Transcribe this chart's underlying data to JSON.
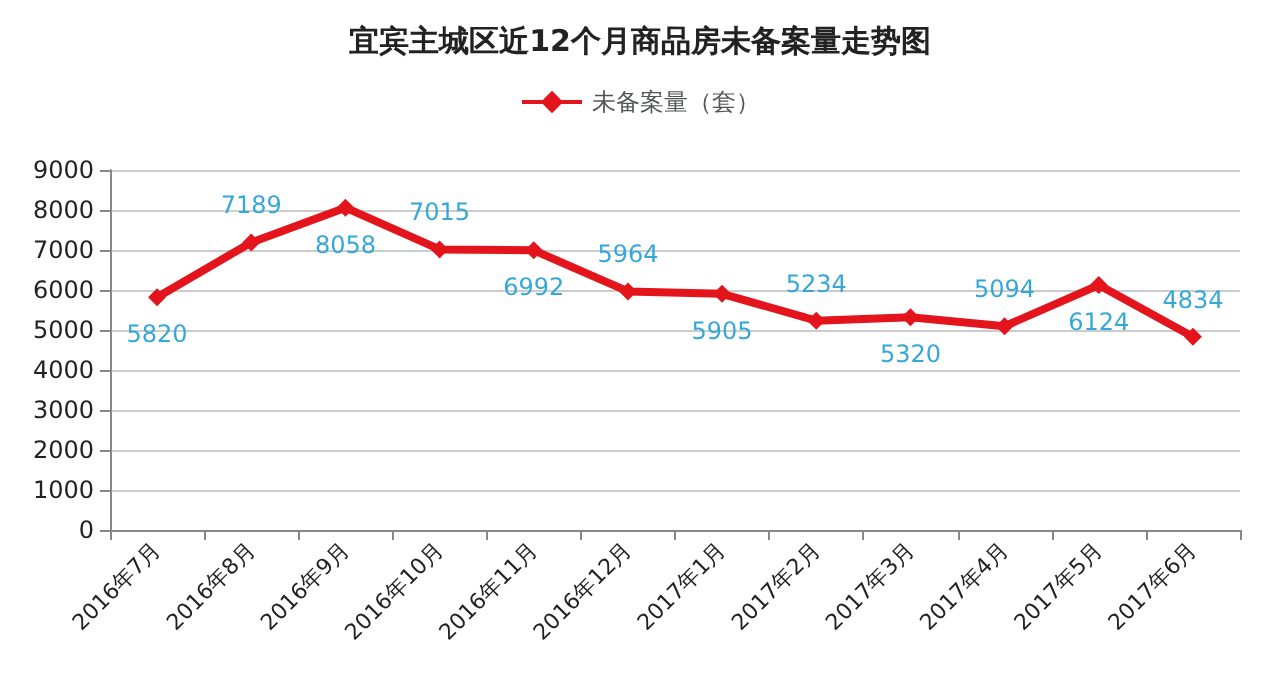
{
  "chart_data": {
    "type": "line",
    "title": "宜宾主城区近12个月商品房未备案量走势图",
    "categories": [
      "2016年7月",
      "2016年8月",
      "2016年9月",
      "2016年10月",
      "2016年11月",
      "2016年12月",
      "2017年1月",
      "2017年2月",
      "2017年3月",
      "2017年4月",
      "2017年5月",
      "2017年6月"
    ],
    "series": [
      {
        "name": "未备案量（套）",
        "color": "#e3141c",
        "values": [
          5820,
          7189,
          8058,
          7015,
          6992,
          5964,
          5905,
          5234,
          5320,
          5094,
          6124,
          4834
        ]
      }
    ],
    "ylim": [
      0,
      9000
    ],
    "yticks": [
      0,
      1000,
      2000,
      3000,
      4000,
      5000,
      6000,
      7000,
      8000,
      9000
    ],
    "grid": "y",
    "legend": "top",
    "marker": "diamond",
    "line_style": "solid",
    "data_labels": true
  }
}
